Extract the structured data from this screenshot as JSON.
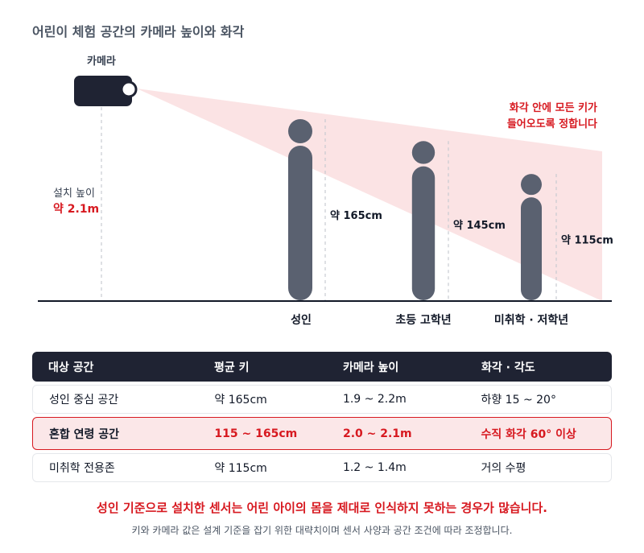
{
  "title": "어린이 체험 공간의 카메라 높이와 화각",
  "diagram": {
    "camera_label": "카메라",
    "install_height_label": "설치 높이",
    "install_height_value": "약 2.1m",
    "note_line1": "화각 안에 모든 키가",
    "note_line2": "들어오도록 정합니다",
    "figures": [
      {
        "category": "성인",
        "height_label": "약 165cm",
        "height_cm": 165
      },
      {
        "category": "초등 고학년",
        "height_label": "약 145cm",
        "height_cm": 145
      },
      {
        "category": "미취학 · 저학년",
        "height_label": "약 115cm",
        "height_cm": 115
      }
    ],
    "colors": {
      "accent": "#d71920",
      "figure": "#5a6170",
      "camera": "#1f2333",
      "fov": "#f9d9db"
    }
  },
  "table": {
    "headers": [
      "대상 공간",
      "평균 키",
      "카메라 높이",
      "화각 · 각도"
    ],
    "rows": [
      [
        "성인 중심 공간",
        "약 165cm",
        "1.9 ~ 2.2m",
        "하향 15 ~ 20°"
      ],
      [
        "혼합 연령 공간",
        "115 ~ 165cm",
        "2.0 ~ 2.1m",
        "수직 화각 60° 이상"
      ],
      [
        "미취학 전용존",
        "약 115cm",
        "1.2 ~ 1.4m",
        "거의 수평"
      ]
    ]
  },
  "conclusion": "성인 기준으로 설치한 센서는 어린 아이의 몸을 제대로 인식하지 못하는 경우가 많습니다.",
  "footnote": "키와 카메라 값은 설계 기준을 잡기 위한 대략치이며 센서 사양과 공간 조건에 따라 조정합니다."
}
